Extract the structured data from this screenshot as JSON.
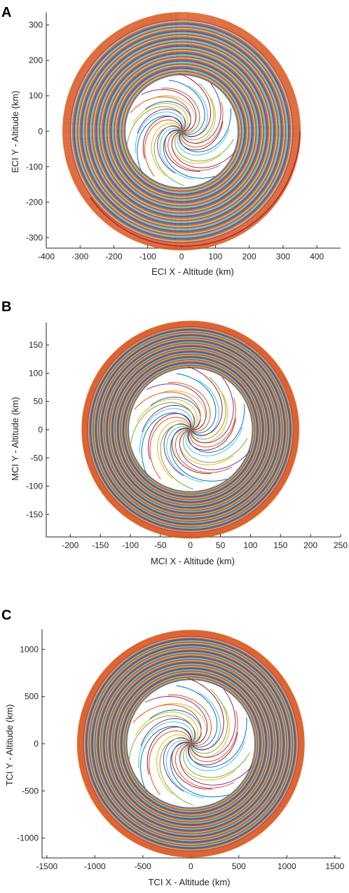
{
  "chart_data": [
    {
      "panel": "A",
      "type": "line",
      "xlabel": "ECI X - Altitude (km)",
      "ylabel": "ECI Y - Altitude (km)",
      "xlim": [
        -400,
        470
      ],
      "ylim": [
        -330,
        335
      ],
      "xticks": [
        -400,
        -300,
        -200,
        -100,
        0,
        100,
        200,
        300,
        400
      ],
      "yticks": [
        -300,
        -200,
        -100,
        0,
        100,
        200,
        300
      ],
      "spiral_center": [
        0,
        0
      ],
      "spiral_start_radius": 0,
      "spiral_end_radius": 335,
      "spiral_end_point": [
        350,
        0
      ],
      "dense_band_inner_radius": 160
    },
    {
      "panel": "B",
      "type": "line",
      "xlabel": "MCI X - Altitude (km)",
      "ylabel": "MCI Y - Altitude (km)",
      "xlim": [
        -240,
        250
      ],
      "ylim": [
        -190,
        190
      ],
      "xticks": [
        -200,
        -150,
        -100,
        -50,
        0,
        50,
        100,
        150,
        200,
        250
      ],
      "yticks": [
        -150,
        -100,
        -50,
        0,
        50,
        100,
        150
      ],
      "spiral_center": [
        0,
        0
      ],
      "spiral_start_radius": 0,
      "spiral_end_radius": 192,
      "dense_band_inner_radius": 110
    },
    {
      "panel": "C",
      "type": "line",
      "xlabel": "TCI X - Altitude (km)",
      "ylabel": "TCI Y - Altitude (km)",
      "xlim": [
        -1550,
        1560
      ],
      "ylim": [
        -1210,
        1210
      ],
      "xticks": [
        -1500,
        -1000,
        -500,
        0,
        500,
        1000,
        1500
      ],
      "yticks": [
        -1000,
        -500,
        0,
        500,
        1000
      ],
      "spiral_center": [
        0,
        0
      ],
      "spiral_start_radius": 0,
      "spiral_end_radius": 1200,
      "dense_band_inner_radius": 680
    }
  ],
  "series_colors": [
    "#0072BD",
    "#D95319",
    "#EDB120",
    "#7E2F8E",
    "#77AC30",
    "#4DBEEE",
    "#A2142F"
  ],
  "outer_color": "#D95319"
}
